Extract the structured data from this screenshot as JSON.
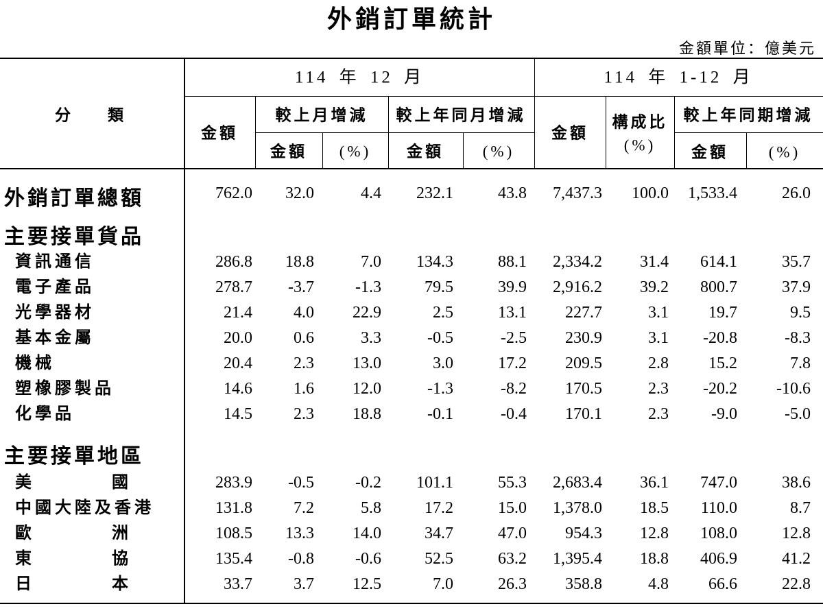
{
  "title": "外銷訂單統計",
  "unit": "金額單位：億美元",
  "header": {
    "category": "分　類",
    "period1": "114 年 12 月",
    "period2": "114 年 1-12 月",
    "amount1": "金額",
    "mom": "較上月增減",
    "yoy": "較上年同月增減",
    "amount2": "金額",
    "share": "構成比",
    "share_unit": "(%)",
    "cum": "較上年同期增減",
    "sub": [
      "金額",
      "(%)",
      "金額",
      "(%)",
      "金額",
      "(%)"
    ]
  },
  "total": {
    "label": "外銷訂單總額",
    "values": [
      "762.0",
      "32.0",
      "4.4",
      "232.1",
      "43.8",
      "7,437.3",
      "100.0",
      "1,533.4",
      "26.0"
    ]
  },
  "groups": [
    {
      "title": "主要接單貨品",
      "rows": [
        {
          "label": "資訊通信",
          "values": [
            "286.8",
            "18.8",
            "7.0",
            "134.3",
            "88.1",
            "2,334.2",
            "31.4",
            "614.1",
            "35.7"
          ]
        },
        {
          "label": "電子產品",
          "values": [
            "278.7",
            "-3.7",
            "-1.3",
            "79.5",
            "39.9",
            "2,916.2",
            "39.2",
            "800.7",
            "37.9"
          ]
        },
        {
          "label": "光學器材",
          "values": [
            "21.4",
            "4.0",
            "22.9",
            "2.5",
            "13.1",
            "227.7",
            "3.1",
            "19.7",
            "9.5"
          ]
        },
        {
          "label": "基本金屬",
          "values": [
            "20.0",
            "0.6",
            "3.3",
            "-0.5",
            "-2.5",
            "230.9",
            "3.1",
            "-20.8",
            "-8.3"
          ]
        },
        {
          "label": "機械",
          "values": [
            "20.4",
            "2.3",
            "13.0",
            "3.0",
            "17.2",
            "209.5",
            "2.8",
            "15.2",
            "7.8"
          ]
        },
        {
          "label": "塑橡膠製品",
          "values": [
            "14.6",
            "1.6",
            "12.0",
            "-1.3",
            "-8.2",
            "170.5",
            "2.3",
            "-20.2",
            "-10.6"
          ]
        },
        {
          "label": "化學品",
          "values": [
            "14.5",
            "2.3",
            "18.8",
            "-0.1",
            "-0.4",
            "170.1",
            "2.3",
            "-9.0",
            "-5.0"
          ]
        }
      ]
    },
    {
      "title": "主要接單地區",
      "rows": [
        {
          "label": "美　國",
          "values": [
            "283.9",
            "-0.5",
            "-0.2",
            "101.1",
            "55.3",
            "2,683.4",
            "36.1",
            "747.0",
            "38.6"
          ]
        },
        {
          "label": "中國大陸及香港",
          "values": [
            "131.8",
            "7.2",
            "5.8",
            "17.2",
            "15.0",
            "1,378.0",
            "18.5",
            "110.0",
            "8.7"
          ]
        },
        {
          "label": "歐　洲",
          "values": [
            "108.5",
            "13.3",
            "14.0",
            "34.7",
            "47.0",
            "954.3",
            "12.8",
            "108.0",
            "12.8"
          ]
        },
        {
          "label": "東　協",
          "values": [
            "135.4",
            "-0.8",
            "-0.6",
            "52.5",
            "63.2",
            "1,395.4",
            "18.8",
            "406.9",
            "41.2"
          ]
        },
        {
          "label": "日　本",
          "values": [
            "33.7",
            "3.7",
            "12.5",
            "7.0",
            "26.3",
            "358.8",
            "4.8",
            "66.6",
            "22.8"
          ]
        }
      ]
    }
  ]
}
